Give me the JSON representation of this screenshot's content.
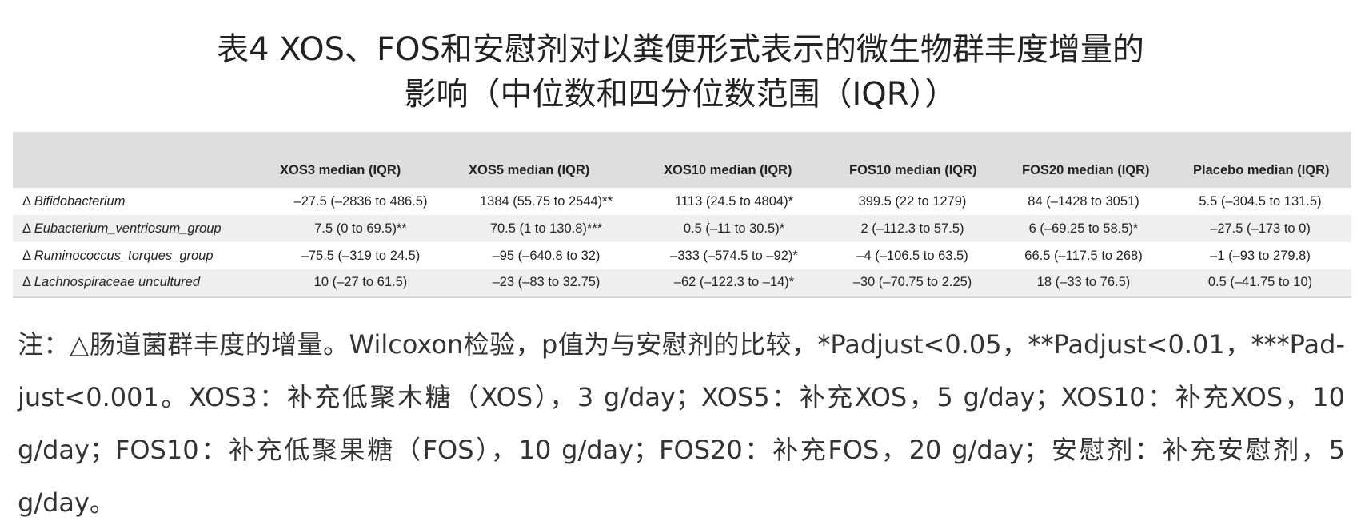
{
  "title": {
    "line1": "表4 XOS、FOS和安慰剂对以粪便形式表示的微生物群丰度增量的",
    "line2": "影响（中位数和四分位数范围（IQR））"
  },
  "table": {
    "headers": [
      "",
      "XOS3 median (IQR)",
      "XOS5 median (IQR)",
      "XOS10 median (IQR)",
      "FOS10 median (IQR)",
      "FOS20 median (IQR)",
      "Placebo median (IQR)"
    ],
    "rows": [
      {
        "delta": "Δ",
        "taxon": "Bifidobacterium",
        "cells": [
          "–27.5 (–2836 to 486.5)",
          "1384 (55.75 to 2544)**",
          "1113 (24.5 to 4804)*",
          "399.5 (22 to 1279)",
          "84 (–1428 to 3051)",
          "5.5 (–304.5 to 131.5)"
        ]
      },
      {
        "delta": "Δ",
        "taxon": "Eubacterium_ventriosum_group",
        "cells": [
          "7.5 (0 to 69.5)**",
          "70.5 (1 to 130.8)***",
          "0.5 (–11 to 30.5)*",
          "2 (–112.3 to 57.5)",
          "6 (–69.25 to 58.5)*",
          "–27.5 (–173 to 0)"
        ]
      },
      {
        "delta": "Δ",
        "taxon": "Ruminococcus_torques_group",
        "cells": [
          "–75.5 (–319 to 24.5)",
          "–95 (–640.8 to 32)",
          "–333 (–574.5 to –92)*",
          "–4 (–106.5 to 63.5)",
          "66.5 (–117.5 to 268)",
          "–1 (–93 to 279.8)"
        ]
      },
      {
        "delta": "Δ",
        "taxon": "Lachnospiraceae uncultured",
        "cells": [
          "10 (–27 to 61.5)",
          "–23 (–83 to 32.75)",
          "–62 (–122.3 to –14)*",
          "–30 (–70.75 to 2.25)",
          "18 (–33 to 76.5)",
          "0.5 (–41.75 to 10)"
        ]
      }
    ]
  },
  "note": "注：△肠道菌群丰度的增量。Wilcoxon检验，p值为与安慰剂的比较，*Padjust<0.05，**Padjust<0.01，***Pad-just<0.001。XOS3：补充低聚木糖（XOS），3 g/day；XOS5：补充XOS，5 g/day；XOS10：补充XOS，10 g/day；FOS10：补充低聚果糖（FOS），10 g/day；FOS20：补充FOS，20 g/day；安慰剂：补充安慰剂，5 g/day。"
}
